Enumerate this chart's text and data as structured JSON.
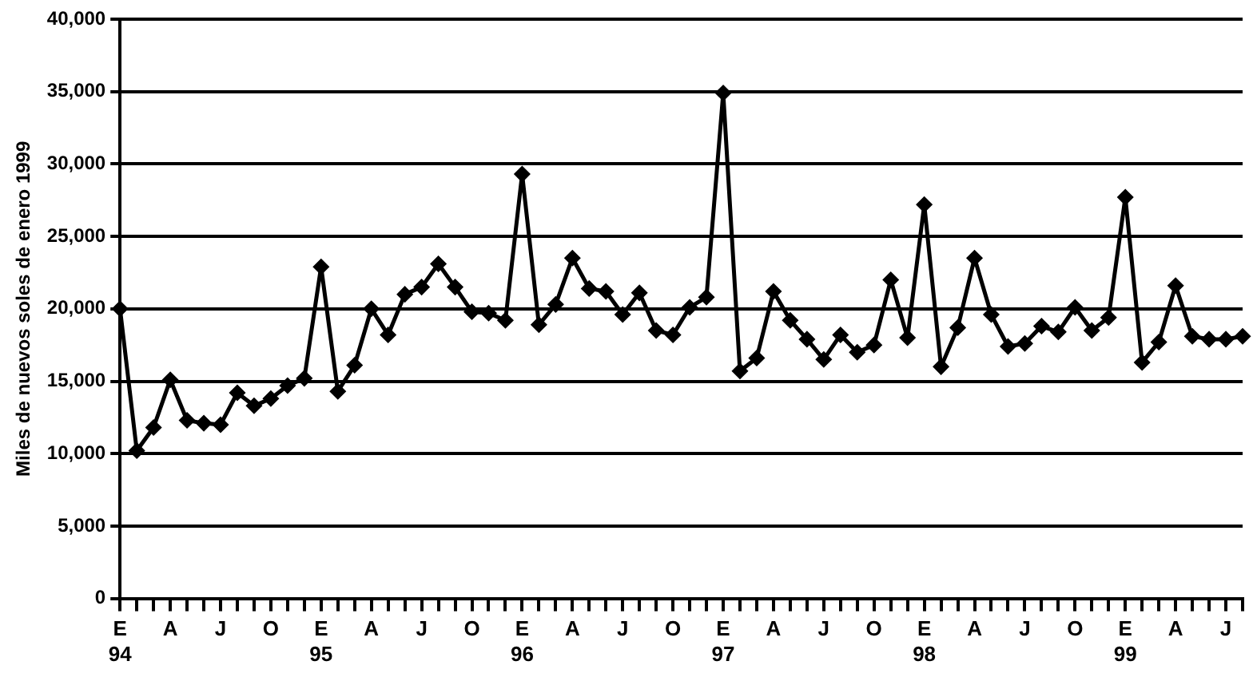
{
  "chart_data": {
    "type": "line",
    "ylabel": "Miles de nuevos soles de enero 1999",
    "categories": [
      "E\n94",
      null,
      null,
      "A",
      null,
      null,
      "J",
      null,
      null,
      "O",
      null,
      null,
      "E\n95",
      null,
      null,
      "A",
      null,
      null,
      "J",
      null,
      null,
      "O",
      null,
      null,
      "E\n96",
      null,
      null,
      "A",
      null,
      null,
      "J",
      null,
      null,
      "O",
      null,
      null,
      "E\n97",
      null,
      null,
      "A",
      null,
      null,
      "J",
      null,
      null,
      "O",
      null,
      null,
      "E\n98",
      null,
      null,
      "A",
      null,
      null,
      "J",
      null,
      null,
      "O",
      null,
      null,
      "E\n99",
      null,
      null,
      "A",
      null,
      null,
      "J",
      null
    ],
    "series": [
      {
        "color": "#000000",
        "values": [
          20000,
          10200,
          11800,
          15100,
          12300,
          12100,
          12000,
          14200,
          13300,
          13800,
          14700,
          15200,
          22900,
          14300,
          16100,
          20000,
          18200,
          21000,
          21500,
          23100,
          21500,
          19800,
          19700,
          19200,
          29300,
          18900,
          20300,
          23500,
          21400,
          21200,
          19600,
          21100,
          18500,
          18200,
          20100,
          20800,
          34900,
          15700,
          16600,
          21200,
          19200,
          17900,
          16500,
          18200,
          17000,
          17500,
          22000,
          18000,
          27200,
          16000,
          18700,
          23500,
          19600,
          17400,
          17600,
          18800,
          18400,
          20100,
          18500,
          19400,
          27700,
          16300,
          17700,
          21600,
          18100,
          17900,
          17900,
          18100
        ]
      }
    ],
    "ylim": [
      0,
      40000
    ],
    "yticks": [
      {
        "value": 0,
        "label": "0"
      },
      {
        "value": 5000,
        "label": "5,000"
      },
      {
        "value": 10000,
        "label": "10,000"
      },
      {
        "value": 15000,
        "label": "15,000"
      },
      {
        "value": 20000,
        "label": "20,000"
      },
      {
        "value": 25000,
        "label": "25,000"
      },
      {
        "value": 30000,
        "label": "30,000"
      },
      {
        "value": 35000,
        "label": "35,000"
      },
      {
        "value": 40000,
        "label": "40,000"
      }
    ],
    "grid": "y",
    "marker": "diamond",
    "line_style": "solid",
    "legend": false
  }
}
